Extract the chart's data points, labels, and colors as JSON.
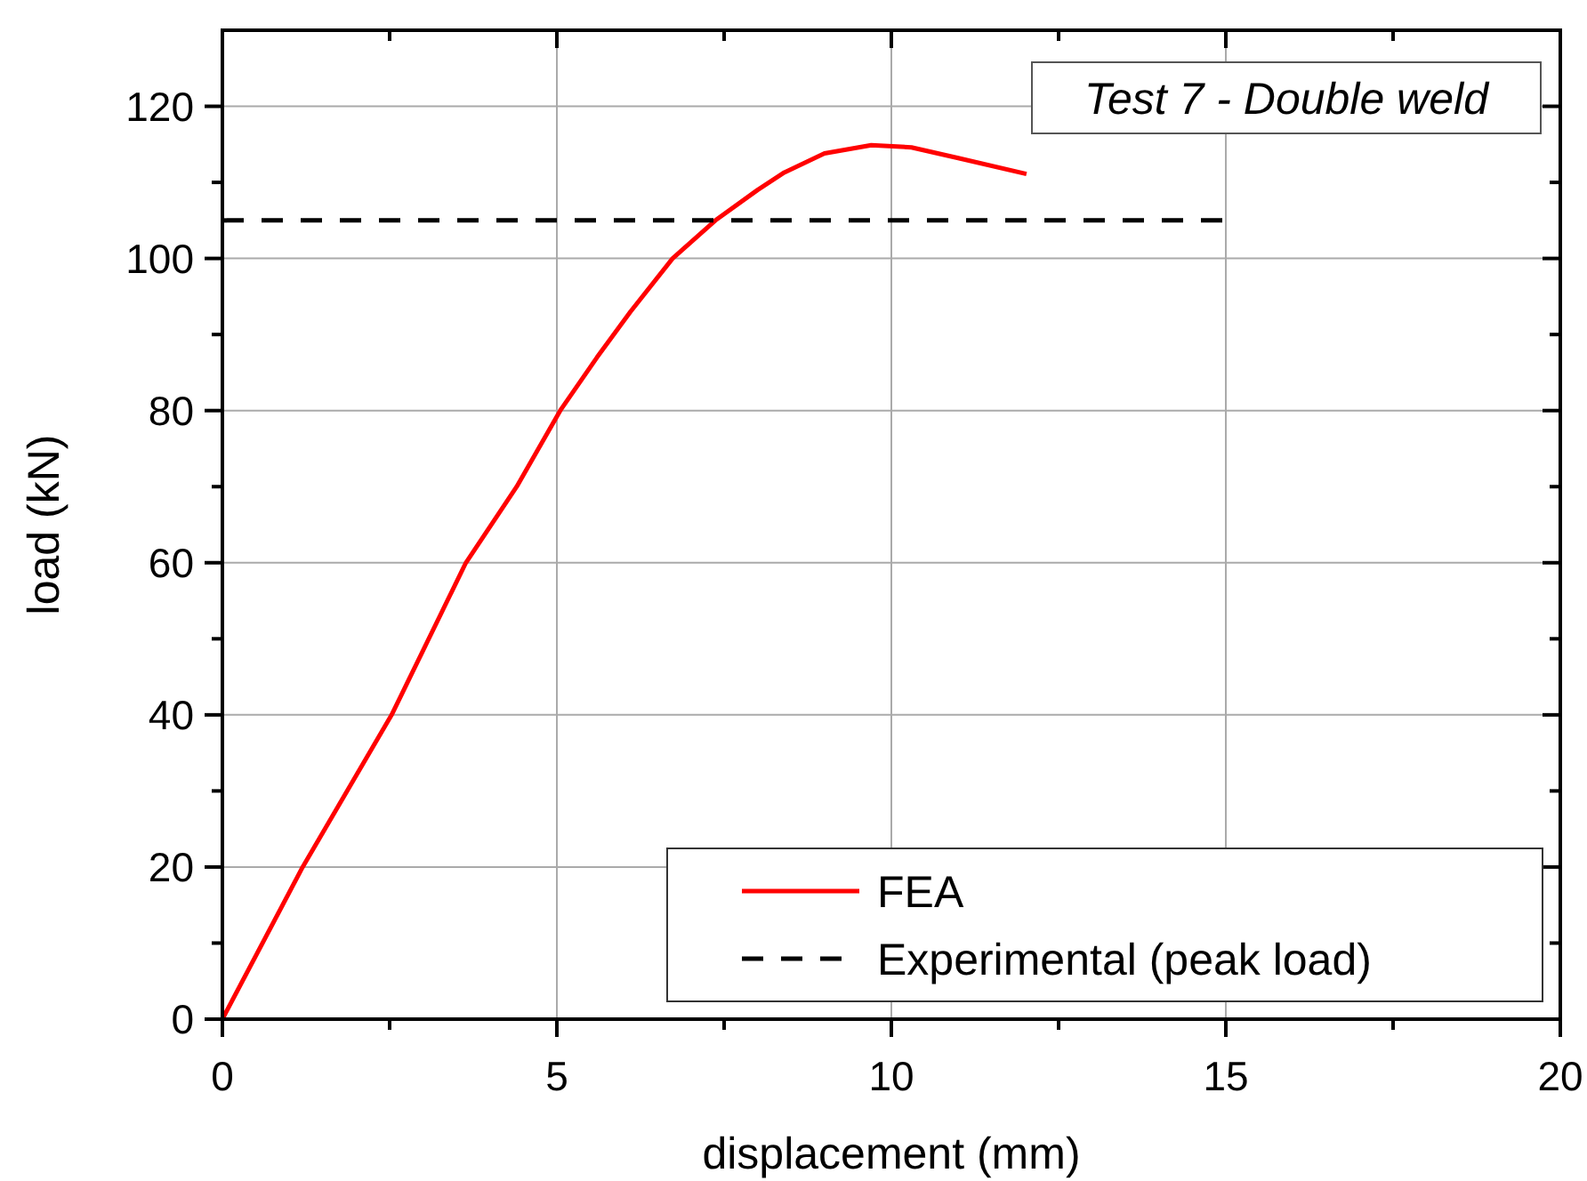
{
  "chart_data": {
    "type": "line",
    "title": "Test 7 - Double weld",
    "xlabel": "displacement  (mm)",
    "ylabel": "load (kN)",
    "xlim": [
      0,
      20
    ],
    "xticks": [
      0,
      {
        "value": 2.5,
        "label": null
      },
      5,
      {
        "value": 7.5,
        "label": null
      },
      10,
      {
        "value": 12.5,
        "label": null
      },
      15,
      {
        "value": 17.5,
        "label": null
      },
      20
    ],
    "ylim": [
      0,
      130
    ],
    "yticks": [
      0,
      {
        "value": 10,
        "label": null
      },
      20,
      {
        "value": 30,
        "label": null
      },
      40,
      {
        "value": 50,
        "label": null
      },
      60,
      {
        "value": 70,
        "label": null
      },
      80,
      {
        "value": 90,
        "label": null
      },
      100,
      {
        "value": 110,
        "label": null
      },
      120
    ],
    "grid": true,
    "legend": "bottom right",
    "series": [
      {
        "name": "FEA",
        "color": "#ff0000",
        "line_style": "solid",
        "x": [
          0,
          1.2,
          2.53,
          3.64,
          4.4,
          5.05,
          5.6,
          6.1,
          6.73,
          7.37,
          8.0,
          8.4,
          9.0,
          9.7,
          10.3,
          11.0,
          12.02
        ],
        "values": [
          0,
          20,
          40,
          60,
          70,
          80,
          87,
          93,
          100,
          105,
          109,
          111.3,
          113.8,
          114.9,
          114.6,
          113.2,
          111.1
        ]
      },
      {
        "name": "Experimental (peak load)",
        "color": "#000000",
        "line_style": "dashed",
        "x": [
          0,
          15
        ],
        "values": [
          105,
          105
        ]
      }
    ]
  }
}
